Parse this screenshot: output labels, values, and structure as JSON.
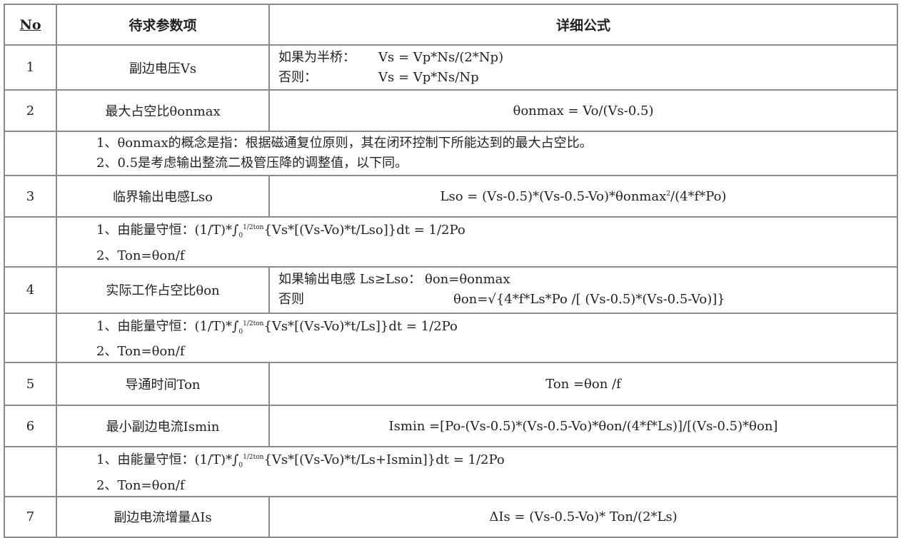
{
  "header": {
    "no": "No",
    "param": "待求参数项",
    "formula": "详细公式"
  },
  "rows": [
    {
      "no": "1",
      "param": "副边电压Vs",
      "lines": [
        {
          "label": "如果为半桥：",
          "text": "Vs = Vp*Ns/(2*Np)"
        },
        {
          "label": "否则：",
          "text": "Vs = Vp*Ns/Np"
        }
      ]
    },
    {
      "no": "2",
      "param": "最大占空比θonmax",
      "formula": "θonmax = Vo/(Vs-0.5)"
    },
    {
      "notes": [
        "1、θonmax的概念是指：根据磁通复位原则，其在闭环控制下所能达到的最大占空比。",
        "2、0.5是考虑输出整流二极管压降的调整值，以下同。"
      ]
    },
    {
      "no": "3",
      "param": "临界输出电感Lso",
      "formula_pre": "Lso = (Vs-0.5)*(Vs-0.5-Vo)*θonmax",
      "formula_sup": "2",
      "formula_post": "/(4*f*Po)"
    },
    {
      "notes_int": [
        {
          "pre": "1、由能量守恒：(1/T)*∫",
          "sub": "0",
          "sup": "1/2ton",
          "post": "{Vs*[(Vs-Vo)*t/Lso]}dt = 1/2Po"
        }
      ],
      "notes": [
        "2、Ton=θon/f"
      ]
    },
    {
      "no": "4",
      "param": "实际工作占空比θon",
      "lines": [
        {
          "label": "如果输出电感 Ls≥Lso：",
          "text": "θon=θonmax"
        },
        {
          "label": "否则",
          "text": "θon=√{4*f*Ls*Po /[ (Vs-0.5)*(Vs-0.5-Vo)]}"
        }
      ]
    },
    {
      "notes_int": [
        {
          "pre": "1、由能量守恒：(1/T)*∫",
          "sub": "0",
          "sup": "1/2ton",
          "post": "{Vs*[(Vs-Vo)*t/Ls]}dt = 1/2Po"
        }
      ],
      "notes": [
        "2、Ton=θon/f"
      ]
    },
    {
      "no": "5",
      "param": "导通时间Ton",
      "formula": "Ton =θon /f"
    },
    {
      "no": "6",
      "param": "最小副边电流Ismin",
      "formula": "Ismin =[Po-(Vs-0.5)*(Vs-0.5-Vo)*θon/(4*f*Ls)]/[(Vs-0.5)*θon]"
    },
    {
      "notes_int": [
        {
          "pre": "1、由能量守恒：(1/T)*∫",
          "sub": "0",
          "sup": "1/2ton",
          "post": "{Vs*[(Vs-Vo)*t/Ls+Ismin]}dt = 1/2Po"
        }
      ],
      "notes": [
        "2、Ton=θon/f"
      ]
    },
    {
      "no": "7",
      "param": "副边电流增量ΔIs",
      "formula": "ΔIs = (Vs-0.5-Vo)* Ton/(2*Ls)"
    }
  ]
}
